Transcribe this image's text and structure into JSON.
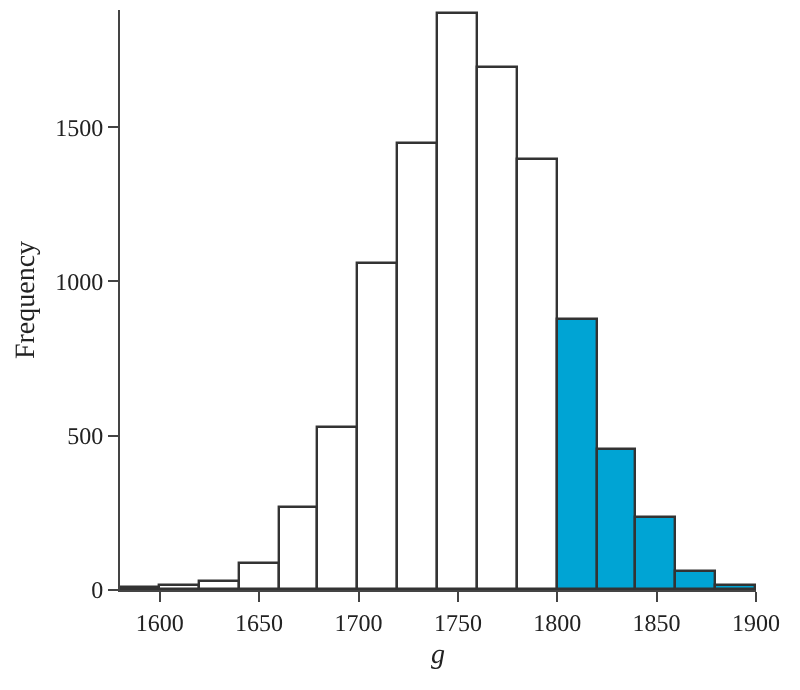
{
  "chart_data": {
    "type": "histogram",
    "xlabel": "g",
    "ylabel": "Frequency",
    "bins": [
      1580,
      1600,
      1620,
      1640,
      1660,
      1680,
      1700,
      1720,
      1740,
      1760,
      1780,
      1800,
      1820,
      1840,
      1860,
      1880,
      1900
    ],
    "values": [
      5,
      10,
      25,
      85,
      265,
      528,
      1054,
      1445,
      1868,
      1695,
      1391,
      872,
      457,
      233,
      58,
      13
    ],
    "colors": [
      "#ffffff",
      "#ffffff",
      "#ffffff",
      "#ffffff",
      "#ffffff",
      "#ffffff",
      "#ffffff",
      "#ffffff",
      "#ffffff",
      "#ffffff",
      "#ffffff",
      "#00a4d4",
      "#00a4d4",
      "#00a4d4",
      "#00a4d4",
      "#00a4d4"
    ],
    "xlim": [
      1580,
      1900
    ],
    "xticks": [
      1600,
      1650,
      1700,
      1750,
      1800,
      1850,
      1900
    ],
    "ylim": [
      0,
      1880
    ],
    "yticks": [
      0,
      500,
      1000,
      1500
    ]
  }
}
